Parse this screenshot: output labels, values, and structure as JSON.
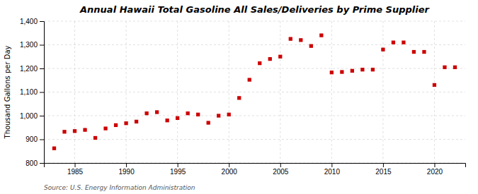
{
  "chart_data": {
    "type": "scatter",
    "title": "Annual Hawaii Total Gasoline All Sales/Deliveries by Prime Supplier",
    "y_label": "Thousand Gallons per Day",
    "annotations": [
      "Source: U.S. Energy Information Administration"
    ],
    "x": [
      1983,
      1984,
      1985,
      1986,
      1987,
      1988,
      1989,
      1990,
      1991,
      1992,
      1993,
      1994,
      1995,
      1996,
      1997,
      1998,
      1999,
      2000,
      2001,
      2002,
      2003,
      2004,
      2005,
      2006,
      2007,
      2008,
      2009,
      2010,
      2011,
      2012,
      2013,
      2014,
      2015,
      2016,
      2017,
      2018,
      2019,
      2020,
      2021,
      2022
    ],
    "values": [
      862,
      932,
      935,
      940,
      906,
      946,
      960,
      968,
      975,
      1010,
      1015,
      980,
      990,
      1010,
      1005,
      970,
      1000,
      1005,
      1075,
      1152,
      1222,
      1240,
      1250,
      1325,
      1320,
      1295,
      1340,
      1183,
      1185,
      1190,
      1195,
      1195,
      1280,
      1310,
      1310,
      1270,
      1270,
      1130,
      1205,
      1205
    ],
    "color": "#cc0000",
    "marker": "square",
    "xlim": [
      1982.0,
      2023.0
    ],
    "ylim": [
      800,
      1400
    ],
    "xticks": [
      1985,
      1990,
      1995,
      2000,
      2005,
      2010,
      2015,
      2020
    ],
    "yticks": [
      800,
      900,
      {
        "value": 1000,
        "label": "1,000"
      },
      {
        "value": 1100,
        "label": "1,100"
      },
      {
        "value": 1200,
        "label": "1,200"
      },
      {
        "value": 1300,
        "label": "1,300"
      },
      {
        "value": 1400,
        "label": "1,400"
      }
    ],
    "grid": true
  }
}
